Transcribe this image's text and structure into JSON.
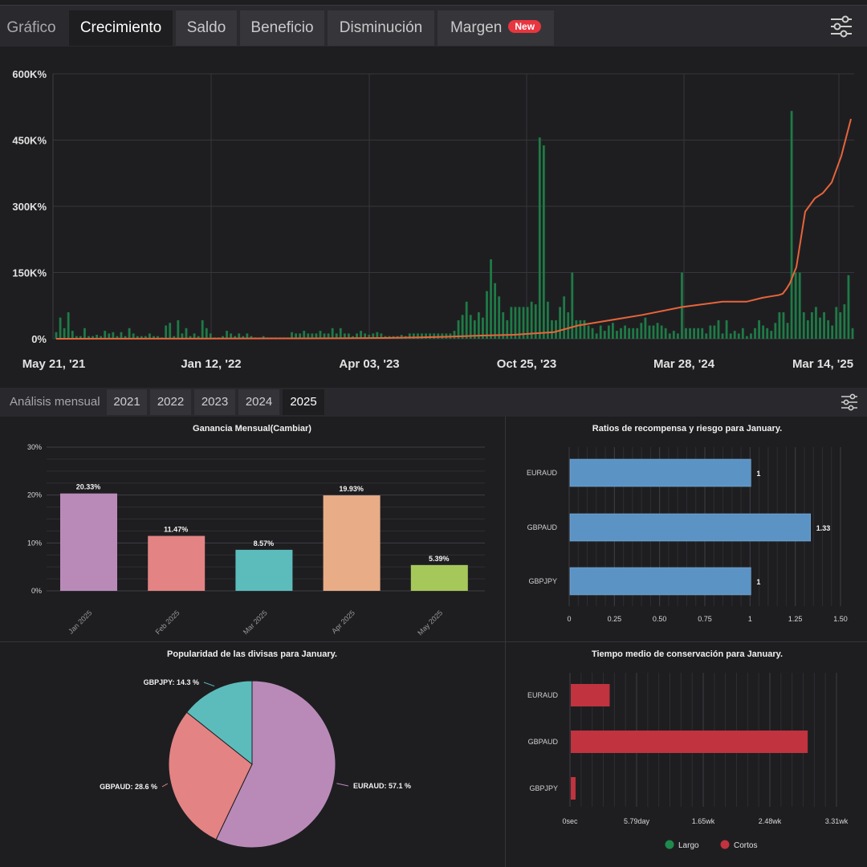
{
  "tabs": [
    {
      "label": "Gráfico",
      "active": false,
      "plain": true
    },
    {
      "label": "Crecimiento",
      "active": true
    },
    {
      "label": "Saldo",
      "active": false
    },
    {
      "label": "Beneficio",
      "active": false
    },
    {
      "label": "Disminución",
      "active": false
    },
    {
      "label": "Margen",
      "active": false
    }
  ],
  "margen_badge": "New",
  "icons": {
    "settings": "sliders-icon"
  },
  "colors": {
    "bar_green": "#1f7a46",
    "growth_line": "#e8643a",
    "bg": "#1e1e21",
    "badge": "#e8353f"
  },
  "growth_chart": {
    "type": "bar",
    "y_ticks": [
      "600K%",
      "450K%",
      "300K%",
      "150K%",
      "0%"
    ],
    "x_ticks": [
      "May 21, '21",
      "Jan 12, '22",
      "Apr 03, '23",
      "Oct 25, '23",
      "Mar 28, '24",
      "Mar 14, '25"
    ],
    "ylim": [
      0,
      600000
    ],
    "bar_heights_pct": [
      2.5,
      8,
      4,
      10,
      3,
      1,
      1,
      4,
      1,
      1,
      1.5,
      1,
      3,
      2,
      2.5,
      1,
      2.5,
      1,
      4,
      2,
      1,
      1,
      1,
      2,
      1,
      1,
      0.5,
      5,
      6,
      1,
      7,
      2,
      4,
      1,
      2,
      1,
      7,
      4,
      2,
      0.5,
      0.5,
      1,
      3,
      2,
      1,
      2,
      1,
      2,
      1,
      0.5,
      0.5,
      1,
      0.5,
      0.5,
      0.5,
      0.5,
      0.5,
      0.5,
      2.5,
      2,
      2,
      3,
      2,
      2,
      2,
      3,
      2,
      2,
      4,
      2,
      4,
      2,
      2,
      1,
      2,
      3,
      2,
      1.5,
      2,
      2.5,
      2,
      1,
      1,
      1,
      1,
      1.5,
      1,
      2,
      2,
      2,
      2,
      2,
      2,
      2,
      2,
      2,
      2,
      2,
      3,
      7,
      9,
      14,
      9,
      7,
      10,
      8,
      18,
      30,
      21,
      16,
      10,
      7,
      12,
      12,
      12,
      12,
      12,
      14,
      13,
      76,
      73,
      14,
      7,
      7,
      12,
      16,
      10,
      25,
      7,
      7,
      7,
      5,
      4,
      2,
      5,
      3,
      5,
      6,
      3,
      4,
      5,
      4,
      4,
      4,
      6,
      8,
      5,
      5,
      6,
      5,
      4,
      2,
      3,
      2,
      25,
      4,
      4,
      4,
      4,
      4,
      2,
      5,
      5,
      7,
      2,
      7,
      2,
      3,
      2,
      4,
      1,
      2,
      4,
      7,
      5,
      4,
      3,
      6,
      10,
      10,
      6,
      86,
      25,
      25,
      10,
      7,
      10,
      12,
      8,
      10,
      7,
      5,
      12,
      10,
      13,
      24,
      4
    ],
    "growth_line_pct": [
      0,
      0.1,
      0.2,
      0.3,
      0.5,
      0.8,
      1.2,
      1.5,
      2.5,
      5,
      7,
      9,
      12,
      14,
      14,
      15.5,
      16,
      16.5,
      17,
      19,
      21,
      24,
      27,
      48,
      53,
      55,
      59,
      69,
      83
    ]
  },
  "monthly_tabs": {
    "label": "Análisis mensual",
    "years": [
      "2021",
      "2022",
      "2023",
      "2024",
      "2025"
    ],
    "active_year": "2025"
  },
  "chart_data": [
    {
      "type": "bar",
      "title": "Ganancia Mensual(Cambiar)",
      "categories": [
        "Jan 2025",
        "Feb 2025",
        "Mar 2025",
        "Apr 2025",
        "May 2025"
      ],
      "values": [
        20.33,
        11.47,
        8.57,
        19.93,
        5.39
      ],
      "value_labels": [
        "20.33%",
        "11.47%",
        "8.57%",
        "19.93%",
        "5.39%"
      ],
      "colors": [
        "#b98ab8",
        "#e38383",
        "#5cbcbc",
        "#e8ad86",
        "#a6c85a"
      ],
      "y_ticks": [
        "30%",
        "20%",
        "10%",
        "0%"
      ],
      "ylim": [
        0,
        30
      ]
    },
    {
      "type": "bar",
      "title": "Ratios de recompensa y riesgo para January.",
      "categories": [
        "EURAUD",
        "GBPAUD",
        "GBPJPY"
      ],
      "values": [
        1,
        1.33,
        1
      ],
      "value_labels": [
        "1",
        "1.33",
        "1"
      ],
      "x_ticks": [
        "0",
        "0.25",
        "0.50",
        "0.75",
        "1",
        "1.25",
        "1.50"
      ],
      "xlim": [
        0,
        1.5
      ],
      "color": "#5b93c4"
    },
    {
      "type": "pie",
      "title": "Popularidad de las divisas para January.",
      "labels": [
        "EURAUD",
        "GBPAUD",
        "GBPJPY"
      ],
      "values": [
        57.1,
        28.6,
        14.3
      ],
      "slice_labels": [
        "EURAUD: 57.1 %",
        "GBPAUD: 28.6 %",
        "GBPJPY: 14.3 %"
      ],
      "colors": [
        "#b98ab8",
        "#e38383",
        "#5cbcbc"
      ]
    },
    {
      "type": "bar",
      "title": "Tiempo medio de conservación para January.",
      "categories": [
        "EURAUD",
        "GBPAUD",
        "GBPJPY"
      ],
      "series": [
        {
          "name": "Cortos",
          "values_fraction": [
            0.146,
            0.889,
            0.018
          ]
        }
      ],
      "x_ticks": [
        "0sec",
        "5.79day",
        "1.65wk",
        "2.48wk",
        "3.31wk"
      ],
      "legend": [
        {
          "label": "Largo",
          "color": "#1e8a4e"
        },
        {
          "label": "Cortos",
          "color": "#c0333f"
        }
      ],
      "color": "#c0333f"
    }
  ]
}
